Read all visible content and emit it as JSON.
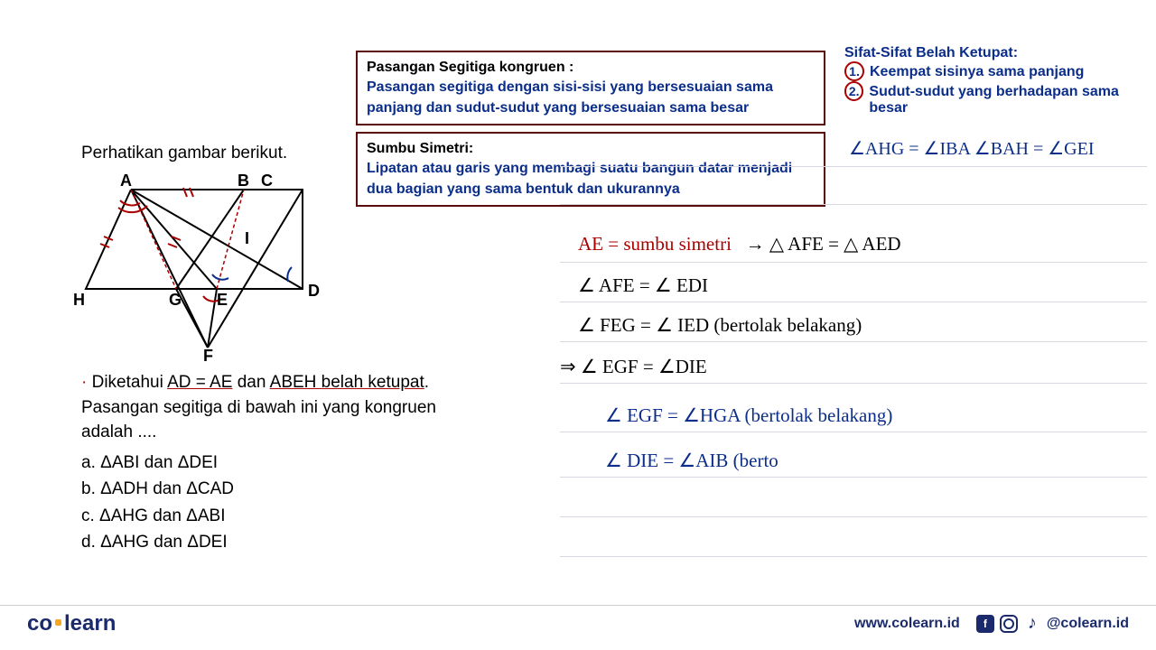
{
  "box1": {
    "title": "Pasangan Segitiga kongruen :",
    "body": "Pasangan segitiga dengan sisi-sisi yang bersesuaian sama panjang dan sudut-sudut yang bersesuaian sama besar"
  },
  "box2": {
    "title": "Sumbu Simetri:",
    "body": "Lipatan atau garis yang membagi suatu bangun datar menjadi dua bagian yang sama bentuk dan ukurannya"
  },
  "rhombus": {
    "title": "Sifat-Sifat Belah Ketupat:",
    "item1_num": "1.",
    "item1": "Keempat sisinya sama panjang",
    "item2_num": "2.",
    "item2": "Sudut-sudut yang berhadapan sama besar"
  },
  "angle_note": "∠AHG = ∠IBA  ∠BAH = ∠GEI",
  "question": {
    "intro": "Perhatikan gambar berikut.",
    "text1": "Diketahui ",
    "u1": "AD = AE",
    "text2": " dan ",
    "u2": "ABEH belah ketupat",
    "text3": ". Pasangan segitiga di bawah ini yang kongruen adalah ....",
    "opts": {
      "a": "a.  ΔABI dan ΔDEI",
      "b": "b.  ΔADH dan ΔCAD",
      "c": "c.  ΔAHG dan ΔABI",
      "d": "d.  ΔAHG dan ΔDEI"
    }
  },
  "work": {
    "l1a": "AE = sumbu simetri",
    "l1b": "→  △ AFE = △ AED",
    "l2": "∠ AFE  =  ∠ EDI",
    "l3": "∠ FEG  =  ∠ IED   (bertolak belakang)",
    "l4": "⇒   ∠ EGF  =  ∠DIE",
    "l5": "∠ EGF  =  ∠HGA   (bertolak belakang)",
    "l6": "∠ DIE  =  ∠AIB   (berto"
  },
  "diagram": {
    "labels": {
      "A": "A",
      "B": "B",
      "C": "C",
      "D": "D",
      "E": "E",
      "F": "F",
      "G": "G",
      "H": "H",
      "I": "I"
    }
  },
  "footer": {
    "logo1": "co",
    "logo2": "learn",
    "url": "www.colearn.id",
    "handle": "@colearn.id"
  },
  "style": {
    "colors": {
      "blue": "#0b2e8a",
      "red": "#a00000",
      "darkred": "#5a0a0a",
      "brand": "#1a2a6c",
      "accent": "#f5a623",
      "line": "#d8d8e0"
    }
  }
}
